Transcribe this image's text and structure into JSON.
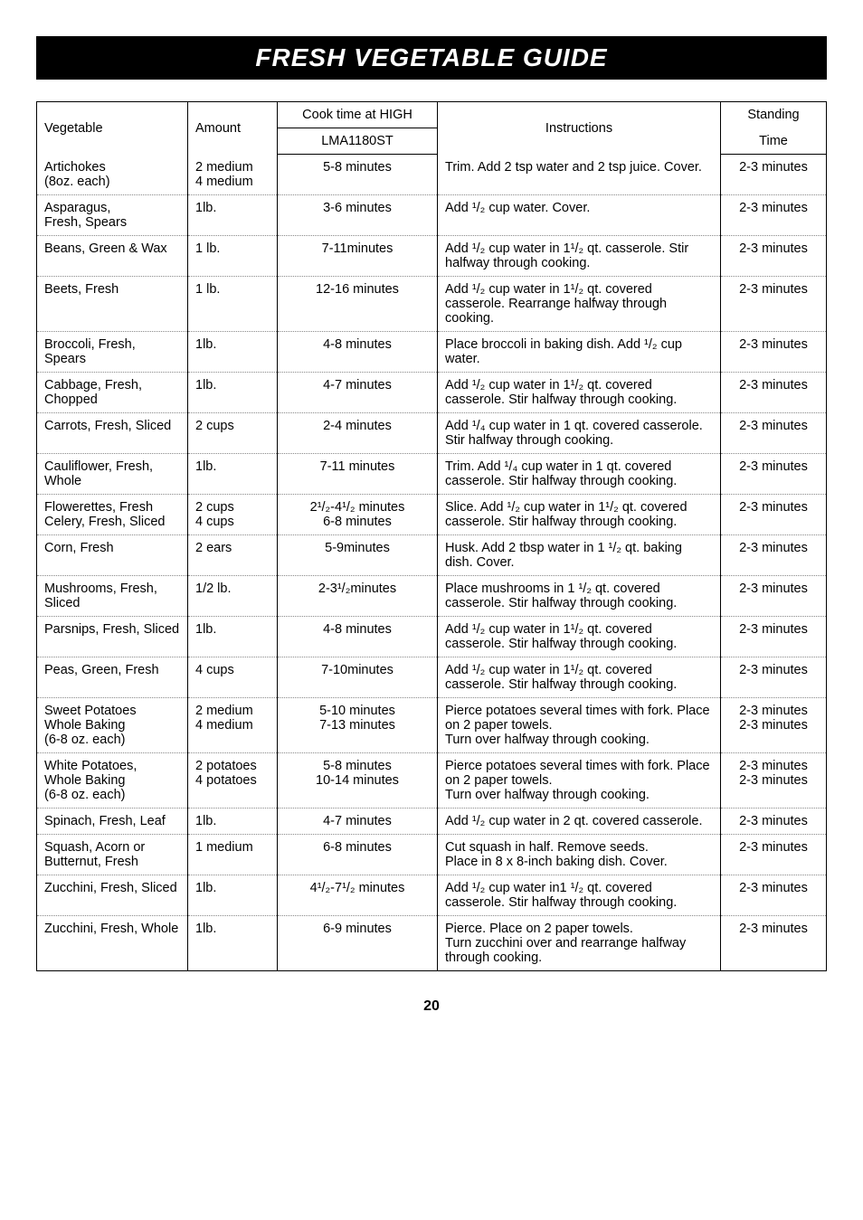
{
  "title": "FRESH VEGETABLE GUIDE",
  "page_number": "20",
  "headers": {
    "vegetable": "Vegetable",
    "amount": "Amount",
    "cook_time": "Cook time at HIGH",
    "model": "LMA1180ST",
    "instructions": "Instructions",
    "standing": "Standing",
    "time": "Time"
  },
  "rows": [
    {
      "veg": "Artichokes\n(8oz. each)",
      "amt": "2 medium\n4 medium",
      "ct": "5-8 minutes",
      "ins": "Trim. Add 2 tsp water and 2 tsp juice. Cover.",
      "st": "2-3 minutes"
    },
    {
      "veg": "Asparagus,\nFresh, Spears",
      "amt": "1lb.",
      "ct": "3-6 minutes",
      "ins": "Add ¹/₂ cup water. Cover.",
      "st": "2-3 minutes"
    },
    {
      "veg": "Beans, Green & Wax",
      "amt": "1 lb.",
      "ct": "7-11minutes",
      "ins": "Add ¹/₂ cup water in 1¹/₂ qt. casserole. Stir halfway through cooking.",
      "st": "2-3 minutes"
    },
    {
      "veg": "Beets, Fresh",
      "amt": "1 lb.",
      "ct": "12-16 minutes",
      "ins": "Add ¹/₂ cup water in 1¹/₂ qt. covered casserole. Rearrange halfway through cooking.",
      "st": "2-3 minutes"
    },
    {
      "veg": "Broccoli, Fresh, Spears",
      "amt": "1lb.",
      "ct": "4-8 minutes",
      "ins": "Place broccoli in baking dish. Add ¹/₂ cup water.",
      "st": "2-3 minutes"
    },
    {
      "veg": "Cabbage, Fresh, Chopped",
      "amt": "1lb.",
      "ct": "4-7 minutes",
      "ins": "Add ¹/₂ cup water in 1¹/₂ qt. covered casserole. Stir halfway through cooking.",
      "st": "2-3 minutes"
    },
    {
      "veg": "Carrots, Fresh, Sliced",
      "amt": "2 cups",
      "ct": "2-4 minutes",
      "ins": "Add ¹/₄ cup water in 1 qt. covered casserole. Stir halfway through cooking.",
      "st": "2-3 minutes"
    },
    {
      "veg": "Cauliflower, Fresh, Whole",
      "amt": "1lb.",
      "ct": "7-11 minutes",
      "ins": "Trim. Add ¹/₄ cup water in 1 qt. covered casserole. Stir halfway through cooking.",
      "st": "2-3 minutes"
    },
    {
      "veg": "Flowerettes, Fresh\nCelery, Fresh, Sliced",
      "amt": "2 cups\n4 cups",
      "ct": "2¹/₂-4¹/₂ minutes\n6-8 minutes",
      "ins": "Slice. Add ¹/₂ cup water in 1¹/₂ qt. covered casserole. Stir halfway through cooking.",
      "st": "2-3 minutes"
    },
    {
      "veg": "Corn, Fresh",
      "amt": "2 ears",
      "ct": "5-9minutes",
      "ins": "Husk. Add 2 tbsp water in 1 ¹/₂ qt. baking dish. Cover.",
      "st": "2-3 minutes"
    },
    {
      "veg": "Mushrooms, Fresh, Sliced",
      "amt": "1/2 lb.",
      "ct": "2-3¹/₂minutes",
      "ins": "Place mushrooms in 1 ¹/₂ qt. covered casserole. Stir halfway through cooking.",
      "st": "2-3 minutes"
    },
    {
      "veg": "Parsnips, Fresh, Sliced",
      "amt": "1lb.",
      "ct": "4-8 minutes",
      "ins": "Add ¹/₂ cup water in 1¹/₂ qt. covered casserole. Stir halfway through cooking.",
      "st": "2-3 minutes"
    },
    {
      "veg": "Peas, Green, Fresh",
      "amt": "4 cups",
      "ct": "7-10minutes",
      "ins": "Add ¹/₂ cup water in 1¹/₂ qt. covered casserole. Stir halfway through cooking.",
      "st": "2-3 minutes"
    },
    {
      "veg": "Sweet Potatoes\nWhole Baking\n(6-8 oz. each)",
      "amt": "2 medium\n4 medium",
      "ct": "5-10 minutes\n7-13 minutes",
      "ins": "Pierce potatoes several times with fork. Place on 2 paper towels.\nTurn over halfway through cooking.",
      "st": "2-3 minutes\n2-3 minutes"
    },
    {
      "veg": "White Potatoes,\nWhole Baking\n(6-8 oz. each)",
      "amt": "2 potatoes\n4 potatoes",
      "ct": "5-8 minutes\n10-14 minutes",
      "ins": "Pierce potatoes several times with fork. Place on 2 paper towels.\nTurn over halfway through cooking.",
      "st": "2-3 minutes\n2-3 minutes"
    },
    {
      "veg": "Spinach, Fresh, Leaf",
      "amt": "1lb.",
      "ct": "4-7 minutes",
      "ins": "Add ¹/₂ cup water in 2 qt. covered casserole.",
      "st": "2-3 minutes"
    },
    {
      "veg": "Squash, Acorn or Butternut, Fresh",
      "amt": "1 medium",
      "ct": "6-8 minutes",
      "ins": "Cut squash in half. Remove seeds.\nPlace in 8 x 8-inch baking dish. Cover.",
      "st": "2-3 minutes"
    },
    {
      "veg": "Zucchini, Fresh, Sliced",
      "amt": "1lb.",
      "ct": "4¹/₂-7¹/₂ minutes",
      "ins": "Add ¹/₂ cup water in1 ¹/₂ qt. covered casserole. Stir halfway through cooking.",
      "st": "2-3 minutes"
    },
    {
      "veg": "Zucchini, Fresh, Whole",
      "amt": "1lb.",
      "ct": "6-9 minutes",
      "ins": "Pierce. Place on 2 paper towels.\nTurn zucchini over and rearrange halfway through cooking.",
      "st": "2-3 minutes"
    }
  ]
}
